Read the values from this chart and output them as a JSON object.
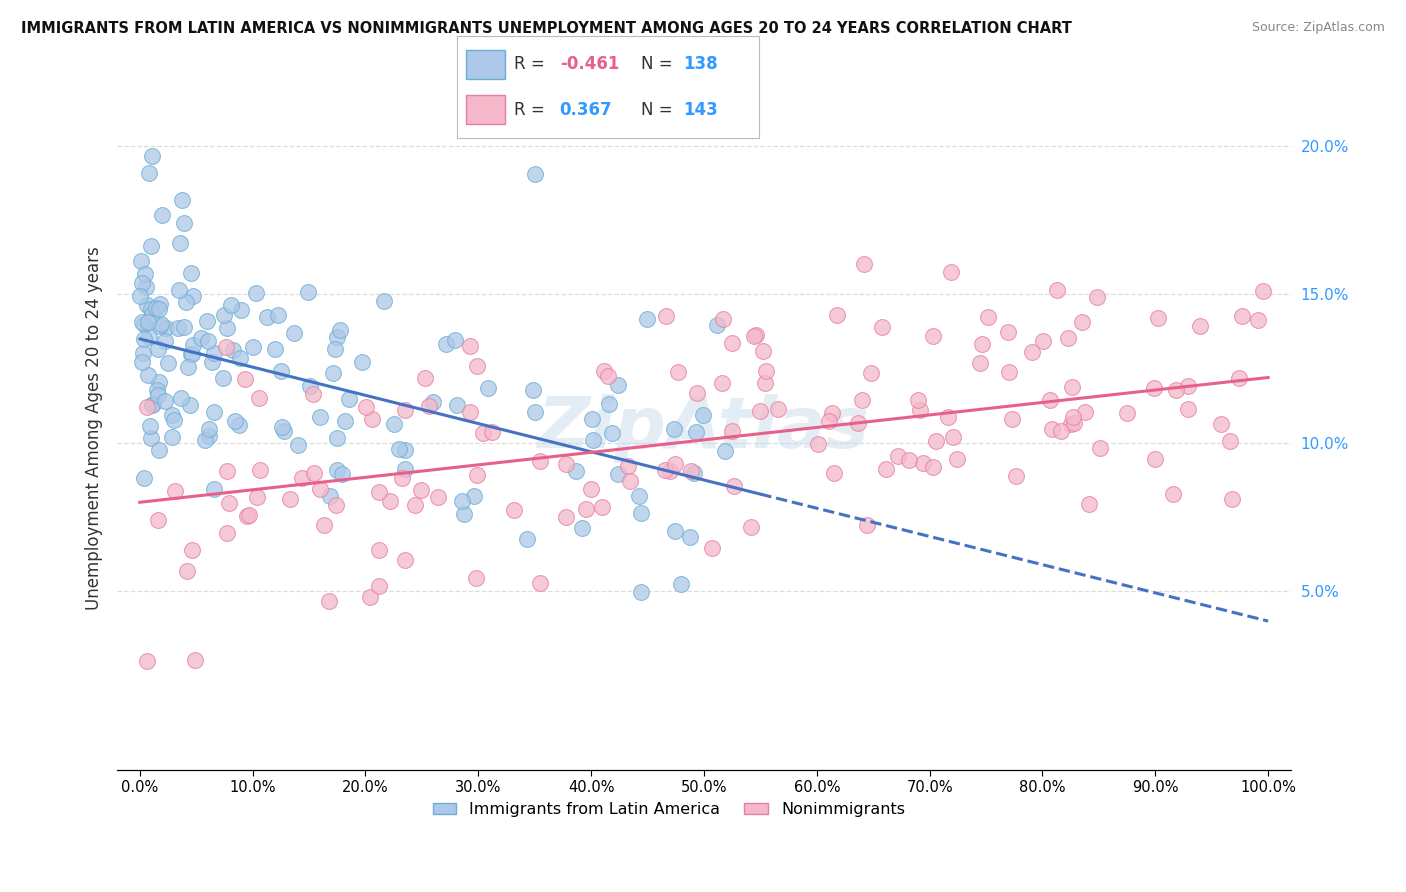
{
  "title": "IMMIGRANTS FROM LATIN AMERICA VS NONIMMIGRANTS UNEMPLOYMENT AMONG AGES 20 TO 24 YEARS CORRELATION CHART",
  "source": "Source: ZipAtlas.com",
  "ylabel": "Unemployment Among Ages 20 to 24 years",
  "xlim": [
    -2,
    102
  ],
  "ylim": [
    -1,
    22
  ],
  "yticks": [
    5.0,
    10.0,
    15.0,
    20.0
  ],
  "ytick_labels": [
    "5.0%",
    "10.0%",
    "15.0%",
    "20.0%"
  ],
  "xticks": [
    0,
    10,
    20,
    30,
    40,
    50,
    60,
    70,
    80,
    90,
    100
  ],
  "xtick_labels": [
    "0.0%",
    "10.0%",
    "20.0%",
    "30.0%",
    "40.0%",
    "50.0%",
    "60.0%",
    "70.0%",
    "80.0%",
    "90.0%",
    "100.0%"
  ],
  "blue_face": "#adc8e8",
  "blue_edge": "#6aaed6",
  "pink_face": "#f4b8ca",
  "pink_edge": "#e87fa0",
  "blue_line": "#4472c4",
  "pink_line": "#e8608a",
  "blue_R": -0.461,
  "blue_N": 138,
  "pink_R": 0.367,
  "pink_N": 143,
  "blue_label": "Immigrants from Latin America",
  "pink_label": "Nonimmigrants",
  "watermark": "ZipAtlas",
  "bg_color": "#ffffff",
  "grid_color": "#dddddd",
  "blue_y0": 13.5,
  "blue_slope": -0.095,
  "pink_y0": 8.0,
  "pink_slope": 0.042,
  "blue_x_max_data": 55,
  "seed_blue": 42,
  "seed_pink": 99
}
